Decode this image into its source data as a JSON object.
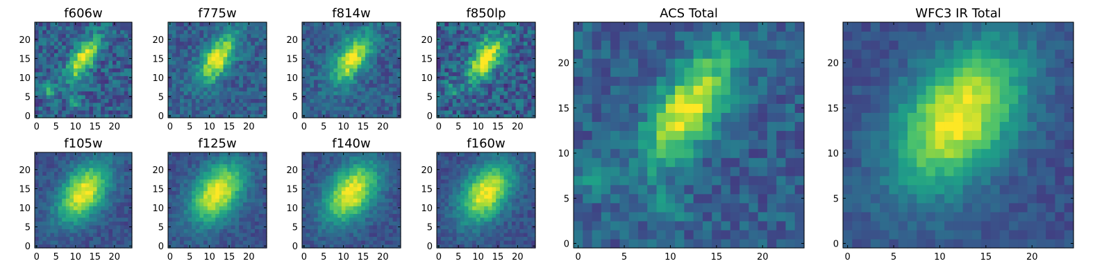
{
  "colormap": {
    "name": "viridis",
    "stops": [
      "#440154",
      "#46327e",
      "#365c8d",
      "#277f8e",
      "#1fa187",
      "#4ac16d",
      "#a0da39",
      "#fde725"
    ]
  },
  "chart_data": [
    {
      "type": "heatmap",
      "title": "f606w",
      "grid": [
        25,
        25
      ],
      "xlim": [
        0,
        24
      ],
      "ylim": [
        0,
        24
      ],
      "xticks": [
        0,
        5,
        10,
        15,
        20
      ],
      "yticks": [
        0,
        5,
        10,
        15,
        20
      ],
      "source": {
        "center": [
          12,
          15
        ],
        "sigma_major": 4.5,
        "sigma_minor": 1.8,
        "angle_deg": 58,
        "background": 0.3,
        "peak": 1.0,
        "noise": 0.16
      },
      "features": [
        {
          "x": 3,
          "y": 7,
          "strength": 0.35
        },
        {
          "x": 10,
          "y": 4,
          "strength": 0.3
        }
      ]
    },
    {
      "type": "heatmap",
      "title": "f775w",
      "grid": [
        25,
        25
      ],
      "xlim": [
        0,
        24
      ],
      "ylim": [
        0,
        24
      ],
      "xticks": [
        0,
        5,
        10,
        15,
        20
      ],
      "yticks": [
        0,
        5,
        10,
        15,
        20
      ],
      "source": {
        "center": [
          12,
          15
        ],
        "sigma_major": 5.0,
        "sigma_minor": 2.3,
        "angle_deg": 58,
        "background": 0.3,
        "peak": 1.0,
        "noise": 0.12
      },
      "features": []
    },
    {
      "type": "heatmap",
      "title": "f814w",
      "grid": [
        25,
        25
      ],
      "xlim": [
        0,
        24
      ],
      "ylim": [
        0,
        24
      ],
      "xticks": [
        0,
        5,
        10,
        15,
        20
      ],
      "yticks": [
        0,
        5,
        10,
        15,
        20
      ],
      "source": {
        "center": [
          12,
          15
        ],
        "sigma_major": 5.0,
        "sigma_minor": 2.4,
        "angle_deg": 58,
        "background": 0.3,
        "peak": 1.0,
        "noise": 0.12
      },
      "features": []
    },
    {
      "type": "heatmap",
      "title": "f850lp",
      "grid": [
        25,
        25
      ],
      "xlim": [
        0,
        24
      ],
      "ylim": [
        0,
        24
      ],
      "xticks": [
        0,
        5,
        10,
        15,
        20
      ],
      "yticks": [
        0,
        5,
        10,
        15,
        20
      ],
      "source": {
        "center": [
          12,
          15
        ],
        "sigma_major": 4.8,
        "sigma_minor": 2.2,
        "angle_deg": 58,
        "background": 0.3,
        "peak": 1.0,
        "noise": 0.18
      },
      "features": [
        {
          "x": 3,
          "y": 7,
          "strength": 0.25
        }
      ]
    },
    {
      "type": "heatmap",
      "title": "f105w",
      "grid": [
        25,
        25
      ],
      "xlim": [
        0,
        24
      ],
      "ylim": [
        0,
        24
      ],
      "xticks": [
        0,
        5,
        10,
        15,
        20
      ],
      "yticks": [
        0,
        5,
        10,
        15,
        20
      ],
      "source": {
        "center": [
          12,
          14
        ],
        "sigma_major": 6.0,
        "sigma_minor": 3.6,
        "angle_deg": 55,
        "background": 0.25,
        "peak": 1.0,
        "noise": 0.08
      },
      "features": []
    },
    {
      "type": "heatmap",
      "title": "f125w",
      "grid": [
        25,
        25
      ],
      "xlim": [
        0,
        24
      ],
      "ylim": [
        0,
        24
      ],
      "xticks": [
        0,
        5,
        10,
        15,
        20
      ],
      "yticks": [
        0,
        5,
        10,
        15,
        20
      ],
      "source": {
        "center": [
          12,
          14
        ],
        "sigma_major": 6.2,
        "sigma_minor": 3.8,
        "angle_deg": 55,
        "background": 0.25,
        "peak": 1.0,
        "noise": 0.08
      },
      "features": []
    },
    {
      "type": "heatmap",
      "title": "f140w",
      "grid": [
        25,
        25
      ],
      "xlim": [
        0,
        24
      ],
      "ylim": [
        0,
        24
      ],
      "xticks": [
        0,
        5,
        10,
        15,
        20
      ],
      "yticks": [
        0,
        5,
        10,
        15,
        20
      ],
      "source": {
        "center": [
          12,
          14
        ],
        "sigma_major": 6.2,
        "sigma_minor": 3.8,
        "angle_deg": 55,
        "background": 0.25,
        "peak": 1.0,
        "noise": 0.08
      },
      "features": []
    },
    {
      "type": "heatmap",
      "title": "f160w",
      "grid": [
        25,
        25
      ],
      "xlim": [
        0,
        24
      ],
      "ylim": [
        0,
        24
      ],
      "xticks": [
        0,
        5,
        10,
        15,
        20
      ],
      "yticks": [
        0,
        5,
        10,
        15,
        20
      ],
      "source": {
        "center": [
          12,
          14
        ],
        "sigma_major": 6.0,
        "sigma_minor": 3.7,
        "angle_deg": 55,
        "background": 0.25,
        "peak": 1.0,
        "noise": 0.08
      },
      "features": []
    },
    {
      "type": "heatmap",
      "title": "ACS Total",
      "grid": [
        25,
        25
      ],
      "xlim": [
        0,
        24
      ],
      "ylim": [
        0,
        24
      ],
      "xticks": [
        0,
        5,
        10,
        15,
        20
      ],
      "yticks": [
        0,
        5,
        10,
        15,
        20
      ],
      "source": {
        "center": [
          12,
          15
        ],
        "sigma_major": 5.0,
        "sigma_minor": 2.2,
        "angle_deg": 58,
        "background": 0.3,
        "peak": 1.0,
        "noise": 0.12
      },
      "features": [
        {
          "x": 2,
          "y": 7,
          "strength": 0.3
        },
        {
          "x": 10,
          "y": 4,
          "strength": 0.25
        }
      ]
    },
    {
      "type": "heatmap",
      "title": "WFC3 IR Total",
      "grid": [
        25,
        25
      ],
      "xlim": [
        0,
        24
      ],
      "ylim": [
        0,
        24
      ],
      "xticks": [
        0,
        5,
        10,
        15,
        20
      ],
      "yticks": [
        0,
        5,
        10,
        15,
        20
      ],
      "source": {
        "center": [
          12,
          14
        ],
        "sigma_major": 6.2,
        "sigma_minor": 3.8,
        "angle_deg": 55,
        "background": 0.25,
        "peak": 1.0,
        "noise": 0.07
      },
      "features": []
    }
  ]
}
